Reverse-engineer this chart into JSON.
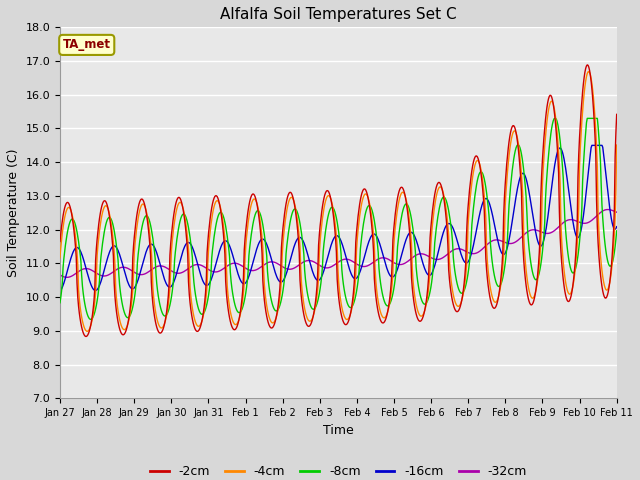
{
  "title": "Alfalfa Soil Temperatures Set C",
  "xlabel": "Time",
  "ylabel": "Soil Temperature (C)",
  "ylim": [
    7.0,
    18.0
  ],
  "yticks": [
    7.0,
    8.0,
    9.0,
    10.0,
    11.0,
    12.0,
    13.0,
    14.0,
    15.0,
    16.0,
    17.0,
    18.0
  ],
  "xtick_labels": [
    "Jan 27",
    "Jan 28",
    "Jan 29",
    "Jan 30",
    "Jan 31",
    "Feb 1",
    "Feb 2",
    "Feb 3",
    "Feb 4",
    "Feb 5",
    "Feb 6",
    "Feb 7",
    "Feb 8",
    "Feb 9",
    "Feb 10",
    "Feb 11"
  ],
  "line_colors": {
    "-2cm": "#cc0000",
    "-4cm": "#ff8800",
    "-8cm": "#00cc00",
    "-16cm": "#0000cc",
    "-32cm": "#aa00aa"
  },
  "legend_label": "TA_met",
  "background_color": "#d8d8d8",
  "plot_bg_color": "#e8e8e8",
  "grid_color": "#ffffff"
}
